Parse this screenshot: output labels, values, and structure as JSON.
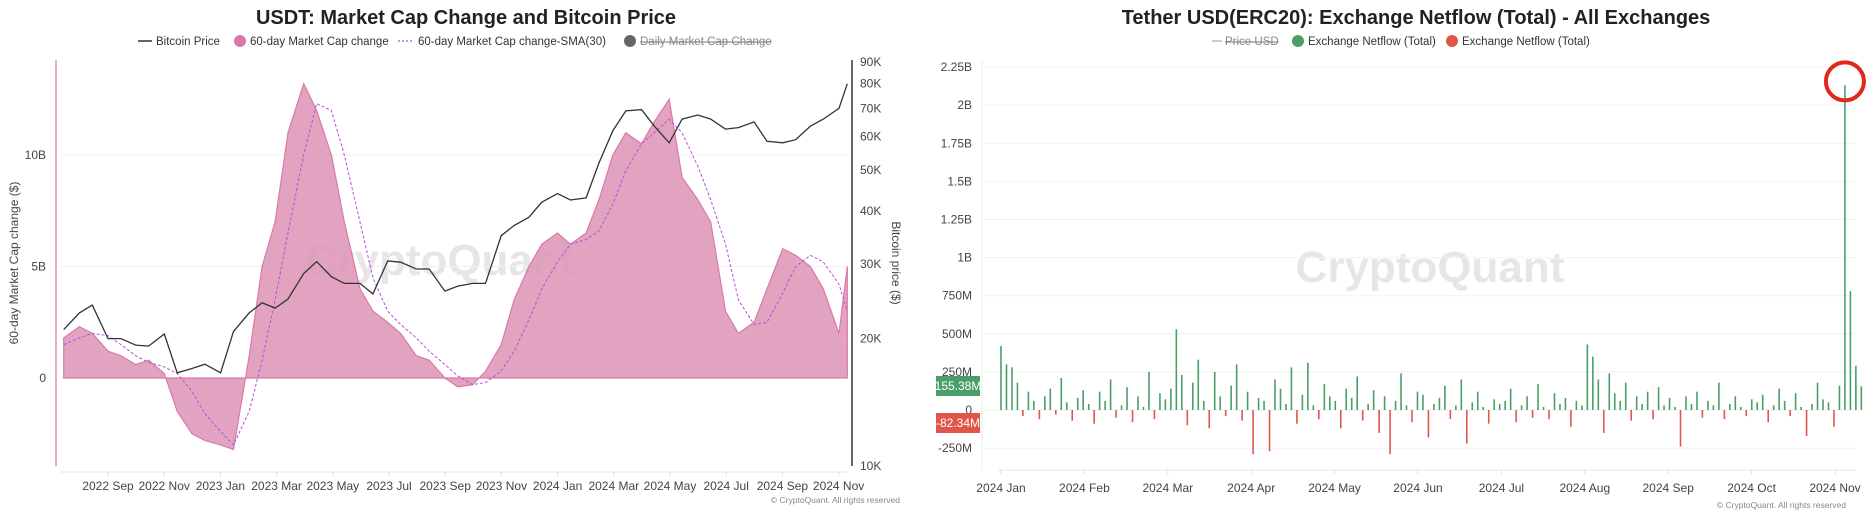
{
  "chart_data": [
    {
      "type": "area+line",
      "title": "USDT: Market Cap Change and Bitcoin Price",
      "legend": {
        "placement": "top-center",
        "items": [
          "Bitcoin Price",
          "60-day Market Cap change",
          "60-day Market Cap change-SMA(30)",
          "Daily Market Cap Change"
        ],
        "hidden": [
          "Daily Market Cap Change"
        ]
      },
      "ylabel": "60-day Market Cap change ($)",
      "y2label": "Bitcoin price ($)",
      "yticks": [
        "0",
        "5B",
        "10B"
      ],
      "ylim": [
        -3.5,
        14.2
      ],
      "y2ticks": [
        "10K",
        "20K",
        "30K",
        "40K",
        "50K",
        "60K",
        "70K",
        "80K",
        "90K"
      ],
      "y2scale": "log",
      "y2lim": [
        10000,
        90000
      ],
      "xticks": [
        "2022 Sep",
        "2022 Nov",
        "2023 Jan",
        "2023 Mar",
        "2023 May",
        "2023 Jul",
        "2023 Sep",
        "2023 Nov",
        "2024 Jan",
        "2024 Mar",
        "2024 May",
        "2024 Jul",
        "2024 Sep",
        "2024 Nov"
      ],
      "colors": {
        "btc": "#333333",
        "mcap": "#d97aa6",
        "mcap_fill": "#dd93b5",
        "sma": "#b34fe0",
        "daily": "#666666"
      },
      "watermark": "CryptoQuant",
      "copyright": "© CryptoQuant. All rights reserved",
      "columns": [
        "date",
        "btc_price_usd",
        "mcap_change_60d_B",
        "sma30_B"
      ],
      "points": [
        [
          "2022-07-15",
          21000,
          1.8,
          1.5
        ],
        [
          "2022-08-01",
          23000,
          2.3,
          1.8
        ],
        [
          "2022-08-15",
          24000,
          2.0,
          2.0
        ],
        [
          "2022-09-01",
          20000,
          1.2,
          1.9
        ],
        [
          "2022-09-15",
          20000,
          1.0,
          1.5
        ],
        [
          "2022-10-01",
          19300,
          0.6,
          1.0
        ],
        [
          "2022-10-15",
          19200,
          0.8,
          0.7
        ],
        [
          "2022-11-01",
          20500,
          0.2,
          0.5
        ],
        [
          "2022-11-15",
          16600,
          -1.5,
          0.2
        ],
        [
          "2022-12-01",
          17000,
          -2.5,
          -0.6
        ],
        [
          "2022-12-15",
          17400,
          -2.8,
          -1.6
        ],
        [
          "2023-01-01",
          16600,
          -3.0,
          -2.4
        ],
        [
          "2023-01-15",
          20800,
          -3.2,
          -3.0
        ],
        [
          "2023-02-01",
          23000,
          1.0,
          -1.5
        ],
        [
          "2023-02-15",
          24300,
          5.0,
          0.8
        ],
        [
          "2023-03-01",
          23600,
          7.0,
          3.5
        ],
        [
          "2023-03-15",
          24800,
          11.0,
          6.5
        ],
        [
          "2023-04-01",
          28500,
          13.2,
          10.0
        ],
        [
          "2023-04-15",
          30400,
          12.0,
          12.3
        ],
        [
          "2023-05-01",
          28000,
          10.0,
          12.0
        ],
        [
          "2023-05-15",
          27000,
          7.0,
          10.0
        ],
        [
          "2023-06-01",
          27000,
          4.0,
          7.0
        ],
        [
          "2023-06-15",
          25500,
          3.0,
          4.5
        ],
        [
          "2023-07-01",
          30500,
          2.5,
          3.0
        ],
        [
          "2023-07-15",
          30300,
          2.0,
          2.4
        ],
        [
          "2023-08-01",
          29200,
          1.0,
          1.8
        ],
        [
          "2023-08-15",
          29200,
          0.8,
          1.2
        ],
        [
          "2023-09-01",
          25900,
          0.0,
          0.6
        ],
        [
          "2023-09-15",
          26600,
          -0.4,
          0.1
        ],
        [
          "2023-10-01",
          27000,
          -0.3,
          -0.3
        ],
        [
          "2023-10-15",
          27000,
          0.3,
          -0.2
        ],
        [
          "2023-11-01",
          35000,
          1.5,
          0.3
        ],
        [
          "2023-11-15",
          37000,
          3.5,
          1.2
        ],
        [
          "2023-12-01",
          38700,
          5.0,
          2.6
        ],
        [
          "2023-12-15",
          42000,
          6.0,
          4.0
        ],
        [
          "2024-01-01",
          44000,
          6.5,
          5.2
        ],
        [
          "2024-01-15",
          42500,
          6.0,
          6.0
        ],
        [
          "2024-02-01",
          43000,
          6.5,
          6.2
        ],
        [
          "2024-02-15",
          52000,
          8.0,
          6.6
        ],
        [
          "2024-03-01",
          62000,
          10.0,
          7.8
        ],
        [
          "2024-03-15",
          69000,
          11.0,
          9.3
        ],
        [
          "2024-04-01",
          69500,
          10.5,
          10.5
        ],
        [
          "2024-04-15",
          63500,
          11.5,
          11.0
        ],
        [
          "2024-05-01",
          58000,
          12.5,
          11.6
        ],
        [
          "2024-05-15",
          66000,
          9.0,
          11.0
        ],
        [
          "2024-06-01",
          67500,
          8.0,
          9.5
        ],
        [
          "2024-06-15",
          66000,
          7.0,
          8.0
        ],
        [
          "2024-07-01",
          62500,
          3.0,
          6.0
        ],
        [
          "2024-07-15",
          63000,
          2.0,
          3.5
        ],
        [
          "2024-08-01",
          65000,
          2.5,
          2.4
        ],
        [
          "2024-08-15",
          58500,
          4.0,
          2.5
        ],
        [
          "2024-09-01",
          58000,
          5.8,
          3.8
        ],
        [
          "2024-09-15",
          59000,
          5.5,
          5.0
        ],
        [
          "2024-10-01",
          63500,
          5.0,
          5.5
        ],
        [
          "2024-10-15",
          66000,
          4.0,
          5.2
        ],
        [
          "2024-11-01",
          70000,
          2.0,
          4.2
        ],
        [
          "2024-11-10",
          80000,
          5.0,
          3.0
        ]
      ]
    },
    {
      "type": "bar",
      "title": "Tether USD(ERC20): Exchange Netflow (Total) - All Exchanges",
      "legend": {
        "placement": "top-center",
        "items": [
          "Price USD",
          "Exchange Netflow (Total)",
          "Exchange Netflow (Total)"
        ],
        "hidden": [
          "Price USD"
        ]
      },
      "yticks": [
        "-250M",
        "0",
        "250M",
        "500M",
        "750M",
        "1B",
        "1.25B",
        "1.5B",
        "1.75B",
        "2B",
        "2.25B"
      ],
      "ylim_M": [
        -300,
        2300
      ],
      "xticks": [
        "2024 Jan",
        "2024 Feb",
        "2024 Mar",
        "2024 Apr",
        "2024 May",
        "2024 Jun",
        "2024 Jul",
        "2024 Aug",
        "2024 Sep",
        "2024 Oct",
        "2024 Nov"
      ],
      "colors": {
        "positive": "#4a9e68",
        "negative": "#e0574a",
        "highlight_circle": "#e0281c"
      },
      "current_values": {
        "positive": "155.38M",
        "negative": "-82.34M"
      },
      "watermark": "CryptoQuant",
      "copyright": "© CryptoQuant. All rights reserved",
      "first_date": "2024-01-01",
      "interval_days": 2,
      "values_M": [
        420,
        300,
        280,
        180,
        -40,
        120,
        60,
        -60,
        90,
        140,
        -30,
        210,
        50,
        -70,
        80,
        130,
        40,
        -90,
        120,
        60,
        200,
        -50,
        30,
        150,
        -80,
        90,
        20,
        250,
        -60,
        110,
        70,
        140,
        530,
        230,
        -100,
        180,
        330,
        60,
        -120,
        250,
        90,
        -40,
        160,
        300,
        -70,
        120,
        -290,
        80,
        60,
        -270,
        200,
        140,
        40,
        280,
        -90,
        100,
        310,
        30,
        -60,
        170,
        90,
        60,
        -120,
        140,
        80,
        220,
        -70,
        40,
        130,
        -150,
        90,
        -290,
        60,
        240,
        30,
        -80,
        120,
        100,
        -180,
        40,
        80,
        160,
        -60,
        30,
        200,
        -220,
        50,
        120,
        20,
        -90,
        70,
        40,
        60,
        140,
        -80,
        30,
        90,
        -50,
        170,
        20,
        -60,
        110,
        40,
        80,
        -110,
        60,
        30,
        430,
        350,
        200,
        -150,
        240,
        110,
        60,
        180,
        -70,
        90,
        40,
        120,
        -60,
        150,
        30,
        80,
        20,
        -240,
        90,
        40,
        120,
        -50,
        60,
        30,
        180,
        -60,
        40,
        90,
        20,
        -40,
        70,
        50,
        100,
        -80,
        30,
        140,
        60,
        -40,
        110,
        20,
        -170,
        40,
        180,
        70,
        50,
        -110,
        160,
        2130,
        780,
        290,
        155.38
      ],
      "highlighted": "2130M spike circled"
    }
  ]
}
